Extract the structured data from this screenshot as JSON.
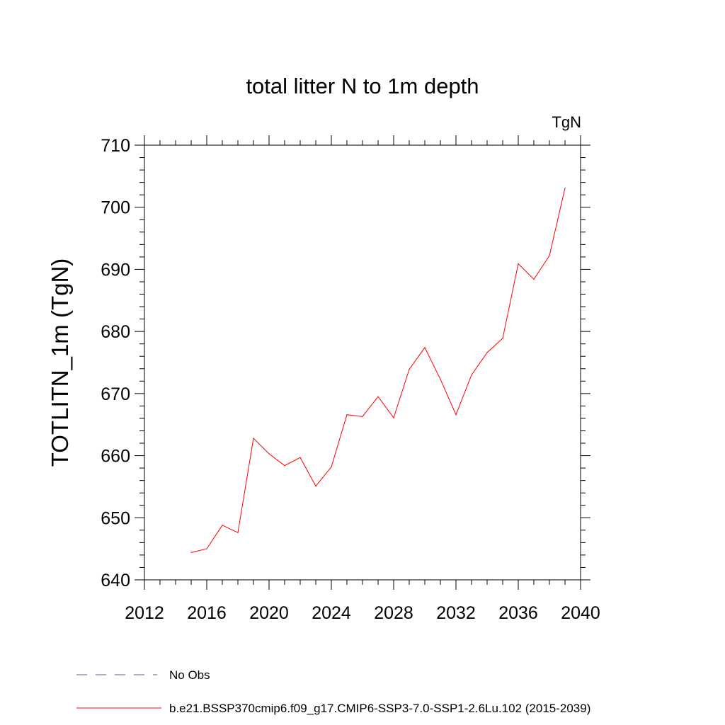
{
  "chart_data": {
    "type": "line",
    "title": "total litter N to 1m depth",
    "units": "TgN",
    "xlabel": "",
    "ylabel": "TOTLITN_1m  (TgN)",
    "xlim": [
      2012,
      2040
    ],
    "ylim": [
      640,
      710
    ],
    "xticks": [
      2012,
      2016,
      2020,
      2024,
      2028,
      2032,
      2036,
      2040
    ],
    "yticks": [
      640,
      650,
      660,
      670,
      680,
      690,
      700,
      710
    ],
    "grid": false,
    "legend_position": "bottom",
    "series": [
      {
        "name": "b.e21.BSSP370cmip6.f09_g17.CMIP6-SSP3-7.0-SSP1-2.6Lu.102 (2015-2039)",
        "color": "#ff0000",
        "style": "solid",
        "x": [
          2015,
          2016,
          2017,
          2018,
          2019,
          2020,
          2021,
          2022,
          2023,
          2024,
          2025,
          2026,
          2027,
          2028,
          2029,
          2030,
          2031,
          2032,
          2033,
          2034,
          2035,
          2036,
          2037,
          2038,
          2039
        ],
        "y": [
          644.4,
          645.0,
          648.8,
          647.6,
          662.8,
          660.3,
          658.4,
          659.7,
          655.1,
          658.2,
          666.6,
          666.3,
          669.5,
          666.1,
          673.9,
          677.4,
          672.3,
          666.6,
          673.0,
          676.6,
          678.9,
          690.9,
          688.4,
          692.2,
          703.1
        ]
      }
    ],
    "legend": [
      {
        "label": "No Obs",
        "color": "#5a5aa8",
        "style": "dashed"
      },
      {
        "label": "b.e21.BSSP370cmip6.f09_g17.CMIP6-SSP3-7.0-SSP1-2.6Lu.102 (2015-2039)",
        "color": "#ff0000",
        "style": "solid"
      }
    ]
  }
}
